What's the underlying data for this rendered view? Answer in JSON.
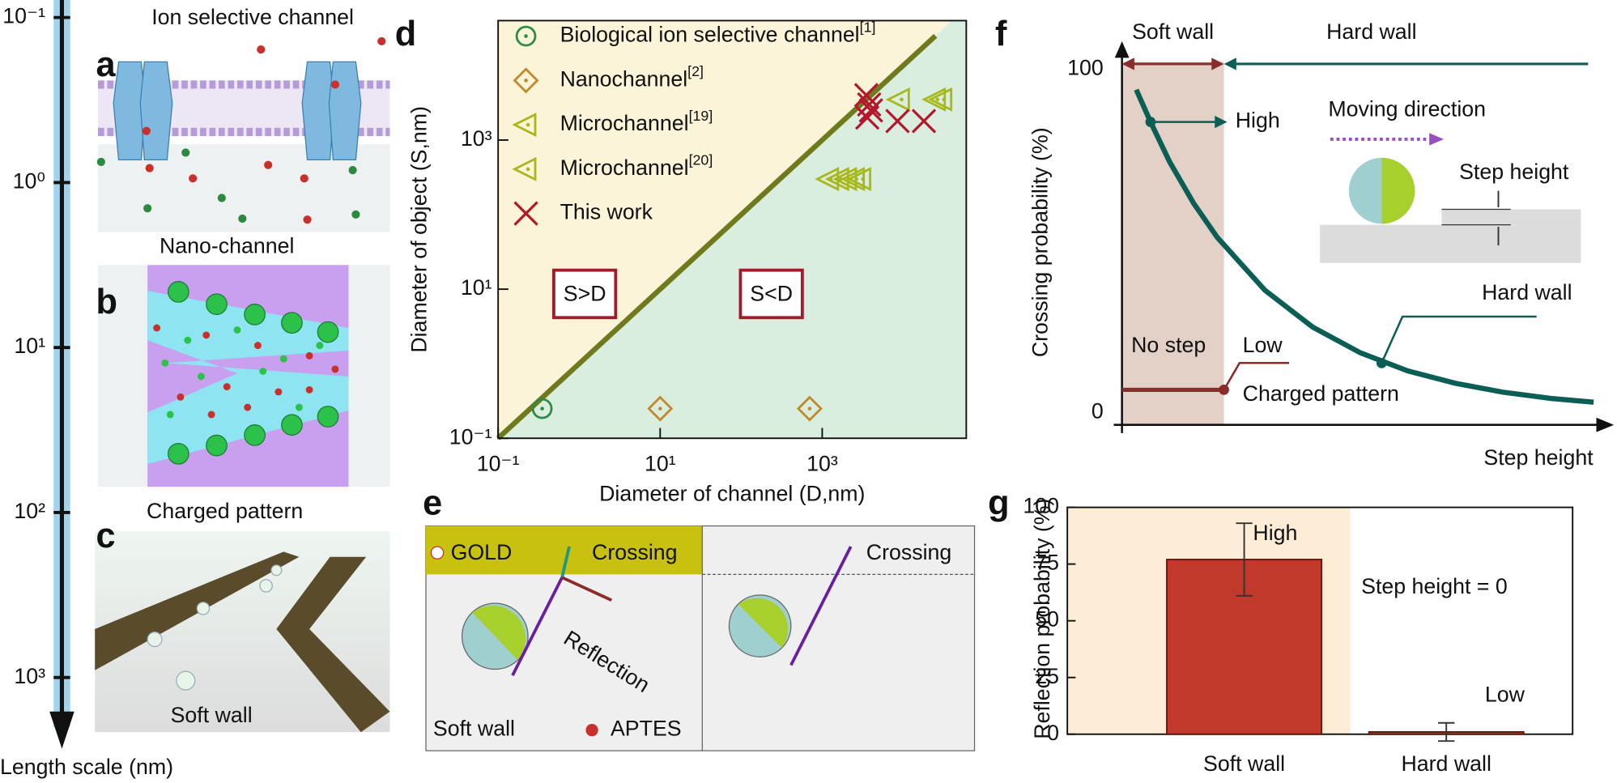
{
  "length_scale": {
    "label": "Length scale (nm)",
    "ticks": [
      {
        "value": 0.1,
        "label": "10⁻¹"
      },
      {
        "value": 1,
        "label": "10⁰"
      },
      {
        "value": 10,
        "label": "10¹"
      },
      {
        "value": 100,
        "label": "10²"
      },
      {
        "value": 1000,
        "label": "10³"
      }
    ]
  },
  "panels": {
    "a": {
      "letter": "a",
      "title": "Ion selective channel"
    },
    "b": {
      "letter": "b",
      "title": "Nano-channel"
    },
    "c": {
      "letter": "c",
      "title": "Charged pattern",
      "label": "Soft wall"
    },
    "e": {
      "letter": "e",
      "gold": "GOLD",
      "crossing_left": "Crossing",
      "reflection": "Reflection",
      "soft_wall": "Soft wall",
      "aptes": "APTES",
      "crossing_right": "Crossing"
    }
  },
  "chart_data": [
    {
      "letter": "d",
      "type": "scatter",
      "xlabel": "Diameter of channel (D,nm)",
      "ylabel": "Diameter of object (S,nm)",
      "log_x": true,
      "log_y": true,
      "xlim": [
        0.1,
        60000
      ],
      "ylim": [
        0.1,
        40000
      ],
      "xticks": [
        {
          "value": 0.1,
          "label": "10⁻¹"
        },
        {
          "value": 10,
          "label": "10¹"
        },
        {
          "value": 1000,
          "label": "10³"
        }
      ],
      "yticks": [
        {
          "value": 0.1,
          "label": "10⁻¹"
        },
        {
          "value": 10,
          "label": "10¹"
        },
        {
          "value": 1000,
          "label": "10³"
        }
      ],
      "region_colors": [
        "#fbf4d8",
        "#d9eedf"
      ],
      "diagonal": {
        "color": "#6e7a1c",
        "x": [
          0.1,
          25000
        ],
        "values": [
          0.1,
          25000
        ]
      },
      "annotations": [
        "S>D",
        "S<D"
      ],
      "series": [
        {
          "name": "Biological ion selective channel",
          "ref": "[1]",
          "marker": "circle",
          "color": "#2e8b47",
          "x": [
            0.35
          ],
          "values": [
            0.25
          ]
        },
        {
          "name": "Nanochannel",
          "ref": "[2]",
          "marker": "diamond",
          "color": "#c08a2a",
          "x": [
            10,
            700
          ],
          "values": [
            0.25,
            0.25
          ]
        },
        {
          "name": "Microchannel",
          "ref": "[19]",
          "marker": "triangle",
          "color": "#a8b81a",
          "x": [
            9000,
            25000,
            30000
          ],
          "values": [
            3500,
            3500,
            3500
          ]
        },
        {
          "name": "Microchannel",
          "ref": "[20]",
          "marker": "triangle",
          "color": "#a8b81a",
          "x": [
            1200,
            1600,
            2000,
            2500,
            3000
          ],
          "values": [
            300,
            300,
            300,
            300,
            300
          ]
        },
        {
          "name": "This work",
          "marker": "cross",
          "color": "#b5162b",
          "x": [
            3500,
            3800,
            4000,
            3600,
            8500,
            18000
          ],
          "values": [
            4000,
            3000,
            2500,
            2000,
            1800,
            1800
          ]
        }
      ]
    },
    {
      "letter": "f",
      "type": "line",
      "xlabel": "Step height",
      "ylabel": "Crossing probability (%)",
      "xlim": [
        0,
        10
      ],
      "ylim": [
        0,
        100
      ],
      "yticks": [
        0,
        100
      ],
      "series": [
        {
          "color": "#0b5e55",
          "x": [
            0.3,
            0.6,
            1,
            1.5,
            2,
            3,
            4,
            5,
            6,
            7,
            8,
            9,
            9.9
          ],
          "values": [
            94,
            84.6,
            73,
            61,
            51,
            35.6,
            24.9,
            17.4,
            12.1,
            8.5,
            5.9,
            4.1,
            3
          ]
        }
      ],
      "no_step": {
        "color": "#8b2c2c",
        "x": [
          0,
          2.14
        ],
        "values": [
          6.6,
          6.6
        ]
      },
      "soft_wall": {
        "label": "Soft wall",
        "end": 2.14,
        "color": "#e3d0c7"
      },
      "hard_wall_label": "Hard wall",
      "markers": [
        {
          "label": "High",
          "x": 0.6,
          "value": 84.6
        },
        {
          "label": "Hard wall",
          "x": 5.45,
          "value": 14.4
        },
        {
          "label": "Low",
          "x": 2.14,
          "value": 6.6
        }
      ],
      "no_step_label": "No step",
      "charged_label": "Charged pattern",
      "inset": {
        "moving": "Moving direction",
        "step": "Step height"
      }
    },
    {
      "letter": "g",
      "type": "bar",
      "ylabel": "Reflection probability (%)",
      "categories": [
        "Soft wall",
        "Hard wall"
      ],
      "values": [
        77,
        1
      ],
      "errors": [
        16,
        4
      ],
      "color": "#c0392b",
      "ylim": [
        0,
        100
      ],
      "yticks": [
        0,
        25,
        50,
        75,
        100
      ],
      "background": "#fdecd6",
      "annotations": {
        "high": "High",
        "low": "Low",
        "note": "Step height = 0"
      }
    }
  ]
}
